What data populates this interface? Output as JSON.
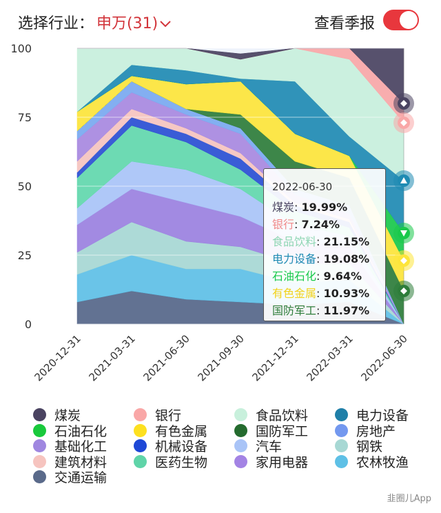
{
  "header": {
    "title": "选择行业：",
    "industry_label": "申万(31)",
    "toggle_label": "查看季报",
    "toggle_on": true
  },
  "colors": {
    "accent": "#d2343a",
    "toggle": "#e8373d"
  },
  "chart_data": {
    "type": "area",
    "stacked": true,
    "percent": true,
    "categories": [
      "2020-12-31",
      "2021-03-31",
      "2021-06-30",
      "2021-09-30",
      "2021-12-31",
      "2022-03-31",
      "2022-06-30"
    ],
    "yticks": [
      0,
      25,
      50,
      75,
      100
    ],
    "ylim": [
      0,
      100
    ],
    "series": [
      {
        "name": "煤炭",
        "color": "#4a4361",
        "values": [
          0,
          0,
          0,
          2,
          0,
          0,
          20
        ]
      },
      {
        "name": "银行",
        "color": "#f9a7a7",
        "values": [
          0,
          0,
          0,
          0,
          0,
          4,
          7
        ]
      },
      {
        "name": "食品饮料",
        "color": "#c8f0dc",
        "values": [
          23,
          6,
          8,
          7,
          12,
          28,
          21
        ]
      },
      {
        "name": "电力设备",
        "color": "#1f8bb3",
        "values": [
          0,
          4,
          5,
          1,
          19,
          7,
          19
        ]
      },
      {
        "name": "石油石化",
        "color": "#19c94b",
        "values": [
          0,
          0,
          0,
          0,
          0,
          0,
          10
        ]
      },
      {
        "name": "有色金属",
        "color": "#fde53a",
        "values": [
          7,
          2,
          9,
          12,
          10,
          8,
          11
        ]
      },
      {
        "name": "国防军工",
        "color": "#2e7d3a",
        "values": [
          0,
          0,
          0,
          5,
          10,
          10,
          12
        ]
      },
      {
        "name": "房地产",
        "color": "#7aa9f0",
        "values": [
          3,
          4,
          2,
          2,
          2,
          3,
          0
        ]
      },
      {
        "name": "基础化工",
        "color": "#a889e0",
        "values": [
          8,
          6,
          5,
          7,
          3,
          2,
          0
        ]
      },
      {
        "name": "建筑材料",
        "color": "#f6c4bf",
        "values": [
          4,
          3,
          2,
          2,
          1,
          1,
          0
        ]
      },
      {
        "name": "机械设备",
        "color": "#2a4fd2",
        "values": [
          2,
          3,
          3,
          4,
          2,
          2,
          0
        ]
      },
      {
        "name": "医药生物",
        "color": "#62d8ad",
        "values": [
          11,
          13,
          10,
          7,
          5,
          3,
          0
        ]
      },
      {
        "name": "汽车",
        "color": "#a9c4f7",
        "values": [
          6,
          10,
          12,
          10,
          6,
          4,
          0
        ]
      },
      {
        "name": "家用电器",
        "color": "#9b81e0",
        "values": [
          10,
          12,
          14,
          11,
          8,
          6,
          0
        ]
      },
      {
        "name": "钢铁",
        "color": "#a7d8d4",
        "values": [
          8,
          12,
          10,
          8,
          7,
          6,
          0
        ]
      },
      {
        "name": "农林牧渔",
        "color": "#5ec0e6",
        "values": [
          10,
          13,
          11,
          12,
          8,
          8,
          0
        ]
      },
      {
        "name": "交通运输",
        "color": "#566789",
        "values": [
          8,
          12,
          9,
          8,
          7,
          8,
          0
        ]
      }
    ],
    "markers": [
      {
        "series": "煤炭",
        "value": 80,
        "shape": "diamond"
      },
      {
        "series": "银行",
        "value": 73,
        "shape": "diamond"
      },
      {
        "series": "电力设备",
        "value": 52,
        "shape": "triangle-up"
      },
      {
        "series": "石油石化",
        "value": 33,
        "shape": "triangle-down"
      },
      {
        "series": "有色金属",
        "value": 23,
        "shape": "diamond"
      },
      {
        "series": "国防军工",
        "value": 12,
        "shape": "diamond"
      }
    ]
  },
  "tooltip": {
    "date": "2022-06-30",
    "rows": [
      {
        "label": "煤炭",
        "value": "19.99%",
        "color": "#4a4361"
      },
      {
        "label": "银行",
        "value": "7.24%",
        "color": "#f08a8a"
      },
      {
        "label": "食品饮料",
        "value": "21.15%",
        "color": "#8fd6b3"
      },
      {
        "label": "电力设备",
        "value": "19.08%",
        "color": "#1f8bb3"
      },
      {
        "label": "石油石化",
        "value": "9.64%",
        "color": "#19c94b"
      },
      {
        "label": "有色金属",
        "value": "10.93%",
        "color": "#f2d21a"
      },
      {
        "label": "国防军工",
        "value": "11.97%",
        "color": "#2e7d3a"
      }
    ]
  },
  "legend": [
    {
      "name": "煤炭",
      "color": "#4a4361"
    },
    {
      "name": "银行",
      "color": "#f9a7a7"
    },
    {
      "name": "食品饮料",
      "color": "#c8f0dc"
    },
    {
      "name": "电力设备",
      "color": "#1f7fa8"
    },
    {
      "name": "石油石化",
      "color": "#19c93c"
    },
    {
      "name": "有色金属",
      "color": "#fde020"
    },
    {
      "name": "国防军工",
      "color": "#246b2e"
    },
    {
      "name": "房地产",
      "color": "#7398ef"
    },
    {
      "name": "基础化工",
      "color": "#9f87e0"
    },
    {
      "name": "机械设备",
      "color": "#1e48d6"
    },
    {
      "name": "汽车",
      "color": "#a9c4f7"
    },
    {
      "name": "钢铁",
      "color": "#a7d8d4"
    },
    {
      "name": "建筑材料",
      "color": "#f6c4bf"
    },
    {
      "name": "医药生物",
      "color": "#5fd4a8"
    },
    {
      "name": "家用电器",
      "color": "#a383e4"
    },
    {
      "name": "农林牧渔",
      "color": "#5ec0e6"
    },
    {
      "name": "交通运输",
      "color": "#5a6a8a"
    }
  ],
  "footer": {
    "text": "韭圈儿App"
  }
}
